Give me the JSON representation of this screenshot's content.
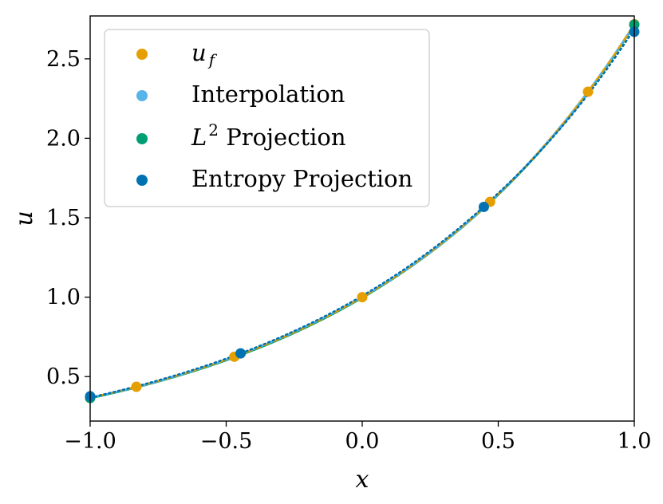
{
  "chart_data": {
    "type": "line",
    "title": "",
    "xlabel": "x",
    "ylabel": "u",
    "xlim": [
      -1.0,
      1.0
    ],
    "ylim": [
      0.22,
      2.77
    ],
    "x_ticks": [
      -1.0,
      -0.5,
      0.0,
      0.5,
      1.0
    ],
    "x_tick_labels": [
      "−1.0",
      "−0.5",
      "0.0",
      "0.5",
      "1.0"
    ],
    "y_ticks": [
      0.5,
      1.0,
      1.5,
      2.0,
      2.5
    ],
    "y_tick_labels": [
      "0.5",
      "1.0",
      "1.5",
      "2.0",
      "2.5"
    ],
    "grid": false,
    "legend_position": "top-left",
    "series": [
      {
        "name": "u_f",
        "legend_main": "u",
        "legend_sub": "f",
        "color": "#E69F00",
        "line_style": "dashed",
        "markers": {
          "x": [
            -1.0,
            -0.83,
            -0.47,
            0.0,
            0.47,
            0.83,
            1.0
          ],
          "y": [
            0.368,
            0.436,
            0.625,
            1.0,
            1.6,
            2.293,
            2.718
          ]
        }
      },
      {
        "name": "Interpolation",
        "legend_main": "Interpolation",
        "color": "#56B4E9",
        "line_style": "solid",
        "markers": {
          "x": [],
          "y": []
        }
      },
      {
        "name": "L2 Projection",
        "legend_main": "L",
        "legend_sup": "2",
        "legend_tail": " Projection",
        "color": "#009E73",
        "line_style": "solid",
        "markers": {
          "x": [
            -1.0,
            1.0
          ],
          "y": [
            0.365,
            2.715
          ]
        }
      },
      {
        "name": "Entropy Projection",
        "legend_main": "Entropy Projection",
        "color": "#0072B2",
        "line_style": "dotted",
        "markers": {
          "x": [
            -1.0,
            -0.447,
            0.447,
            1.0
          ],
          "y": [
            0.376,
            0.646,
            1.568,
            2.67
          ]
        }
      }
    ]
  }
}
